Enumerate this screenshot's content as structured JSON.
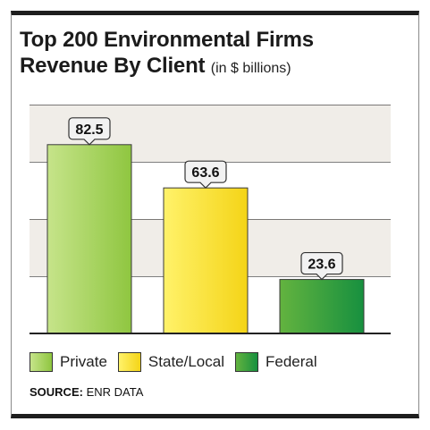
{
  "title_line1": "Top 200 Environmental Firms",
  "title_line2": "Revenue By Client",
  "title_unit": "(in $ billions)",
  "source_label": "SOURCE:",
  "source_text": "ENR DATA",
  "chart_data": {
    "type": "bar",
    "title": "Top 200 Environmental Firms Revenue By Client",
    "unit": "(in $ billions)",
    "categories": [
      "Private",
      "State/Local",
      "Federal"
    ],
    "values": [
      82.5,
      63.6,
      23.6
    ],
    "value_labels": [
      "82.5",
      "63.6",
      "23.6"
    ],
    "colors": [
      "#9acd4a",
      "#f6de1c",
      "#2e9a3e"
    ],
    "ylim": [
      0,
      100
    ],
    "grid": "alternating horizontal bands",
    "legend": "bottom"
  }
}
